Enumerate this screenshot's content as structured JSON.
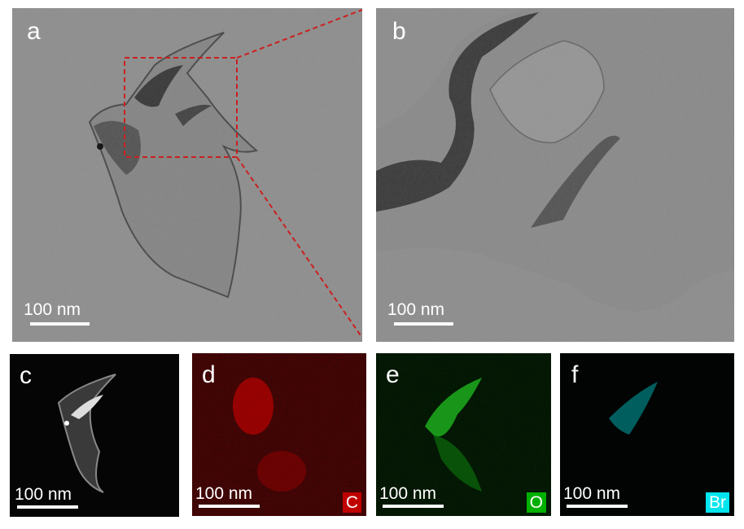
{
  "panels": {
    "a": {
      "label": "a",
      "scale_bar": "100 nm"
    },
    "b": {
      "label": "b",
      "scale_bar": "100 nm"
    },
    "c": {
      "label": "c",
      "scale_bar": "100 nm"
    },
    "d": {
      "label": "d",
      "scale_bar": "100 nm",
      "element": "C",
      "color": "#c00000"
    },
    "e": {
      "label": "e",
      "scale_bar": "100 nm",
      "element": "O",
      "color": "#00b000"
    },
    "f": {
      "label": "f",
      "scale_bar": "100 nm",
      "element": "Br",
      "color": "#00e5ee"
    }
  },
  "colors": {
    "inset_box": "#cc1f1f",
    "tem_background": "#8f8f8f"
  }
}
